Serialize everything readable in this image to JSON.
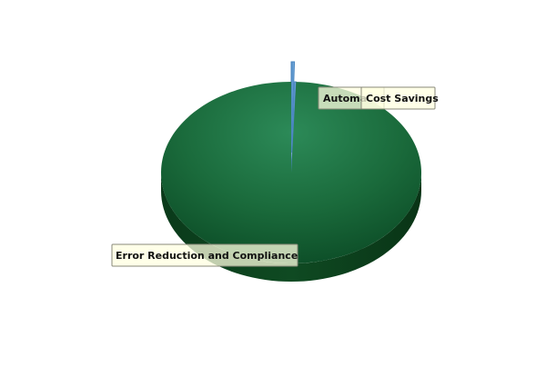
{
  "chart_data": {
    "type": "pie",
    "style": "3d",
    "categories": [
      "Error Reduction and Compliance",
      "Automation",
      "Cost Savings"
    ],
    "values": [
      99.4,
      0.4,
      0.2
    ],
    "unit": "%",
    "labels": [
      "Error Reduction and Compliance",
      "Automa",
      "Cost Savings"
    ],
    "colors": [
      "#1a6e3c",
      "#5b9bd5",
      "#5b9bd5"
    ],
    "exploded": [
      false,
      true,
      false
    ],
    "legend": "none",
    "grid": false
  }
}
